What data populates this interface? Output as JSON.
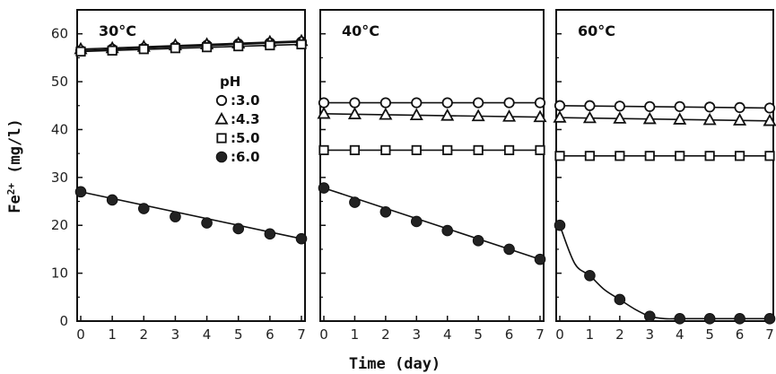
{
  "chart_data": {
    "type": "line",
    "ylabel": "Fe2+ (mg/l)",
    "xlabel": "Time (day)",
    "ylim": [
      0,
      65
    ],
    "yticks": [
      0,
      10,
      20,
      30,
      40,
      50,
      60
    ],
    "xticks": [
      0,
      1,
      2,
      3,
      4,
      5,
      6,
      7
    ],
    "legend": {
      "title": "pH",
      "placement": "right side of first panel",
      "entries": [
        {
          "marker": "open-circle",
          "label": ":3.0"
        },
        {
          "marker": "open-triangle",
          "label": ":4.3"
        },
        {
          "marker": "open-square",
          "label": ":5.0"
        },
        {
          "marker": "filled-circle",
          "label": ":6.0"
        }
      ]
    },
    "panels": [
      {
        "title": "30°C",
        "xlim": [
          0,
          7
        ],
        "series": [
          {
            "name": "pH 3.0",
            "marker": "open-circle",
            "x": [
              0,
              1,
              2,
              3,
              4,
              5,
              6,
              7
            ],
            "values": [
              56.5,
              56.8,
              57.0,
              57.3,
              57.6,
              57.9,
              58.1,
              58.3
            ],
            "curve": "linear"
          },
          {
            "name": "pH 4.3",
            "marker": "open-triangle",
            "x": [
              0,
              1,
              2,
              3,
              4,
              5,
              6,
              7
            ],
            "values": [
              56.8,
              57.0,
              57.3,
              57.6,
              57.8,
              58.0,
              58.3,
              58.5
            ],
            "curve": "linear"
          },
          {
            "name": "pH 5.0",
            "marker": "open-square",
            "x": [
              0,
              1,
              2,
              3,
              4,
              5,
              6,
              7
            ],
            "values": [
              56.3,
              56.5,
              56.8,
              57.0,
              57.2,
              57.4,
              57.6,
              57.8
            ],
            "curve": "linear"
          },
          {
            "name": "pH 6.0",
            "marker": "filled-circle",
            "x": [
              0,
              1,
              2,
              3,
              4,
              5,
              6,
              7
            ],
            "values": [
              27.0,
              25.3,
              23.5,
              21.8,
              20.5,
              19.3,
              18.2,
              17.2
            ],
            "curve": "linear"
          }
        ]
      },
      {
        "title": "40°C",
        "xlim": [
          0,
          7
        ],
        "series": [
          {
            "name": "pH 3.0",
            "marker": "open-circle",
            "x": [
              0,
              1,
              2,
              3,
              4,
              5,
              6,
              7
            ],
            "values": [
              45.6,
              45.6,
              45.6,
              45.6,
              45.6,
              45.6,
              45.6,
              45.6
            ],
            "curve": "linear"
          },
          {
            "name": "pH 4.3",
            "marker": "open-triangle",
            "x": [
              0,
              1,
              2,
              3,
              4,
              5,
              6,
              7
            ],
            "values": [
              43.3,
              43.2,
              43.1,
              43.0,
              42.9,
              42.8,
              42.7,
              42.6
            ],
            "curve": "linear"
          },
          {
            "name": "pH 5.0",
            "marker": "open-square",
            "x": [
              0,
              1,
              2,
              3,
              4,
              5,
              6,
              7
            ],
            "values": [
              35.7,
              35.7,
              35.7,
              35.7,
              35.7,
              35.7,
              35.7,
              35.7
            ],
            "curve": "linear"
          },
          {
            "name": "pH 6.0",
            "marker": "filled-circle",
            "x": [
              0,
              1,
              2,
              3,
              4,
              5,
              6,
              7
            ],
            "values": [
              27.8,
              24.8,
              22.8,
              20.8,
              18.9,
              16.8,
              15.0,
              12.9
            ],
            "curve": "linear"
          }
        ]
      },
      {
        "title": "60°C",
        "xlim": [
          0,
          7
        ],
        "series": [
          {
            "name": "pH 3.0",
            "marker": "open-circle",
            "x": [
              0,
              1,
              2,
              3,
              4,
              5,
              6,
              7
            ],
            "values": [
              45.0,
              45.0,
              44.9,
              44.8,
              44.8,
              44.7,
              44.6,
              44.5
            ],
            "curve": "linear"
          },
          {
            "name": "pH 4.3",
            "marker": "open-triangle",
            "x": [
              0,
              1,
              2,
              3,
              4,
              5,
              6,
              7
            ],
            "values": [
              42.5,
              42.4,
              42.3,
              42.2,
              42.1,
              42.0,
              41.9,
              41.8
            ],
            "curve": "linear"
          },
          {
            "name": "pH 5.0",
            "marker": "open-square",
            "x": [
              0,
              1,
              2,
              3,
              4,
              5,
              6,
              7
            ],
            "values": [
              34.5,
              34.5,
              34.5,
              34.5,
              34.5,
              34.5,
              34.5,
              34.5
            ],
            "curve": "linear"
          },
          {
            "name": "pH 6.0",
            "marker": "filled-circle",
            "x": [
              0,
              0.5,
              1,
              1.5,
              2,
              2.5,
              3,
              3.5,
              4,
              5,
              6,
              7
            ],
            "values": [
              20.0,
              12.0,
              9.5,
              6.5,
              4.5,
              2.5,
              1.0,
              0.5,
              0.5,
              0.5,
              0.5,
              0.5
            ],
            "curve": "smooth"
          }
        ]
      }
    ]
  }
}
